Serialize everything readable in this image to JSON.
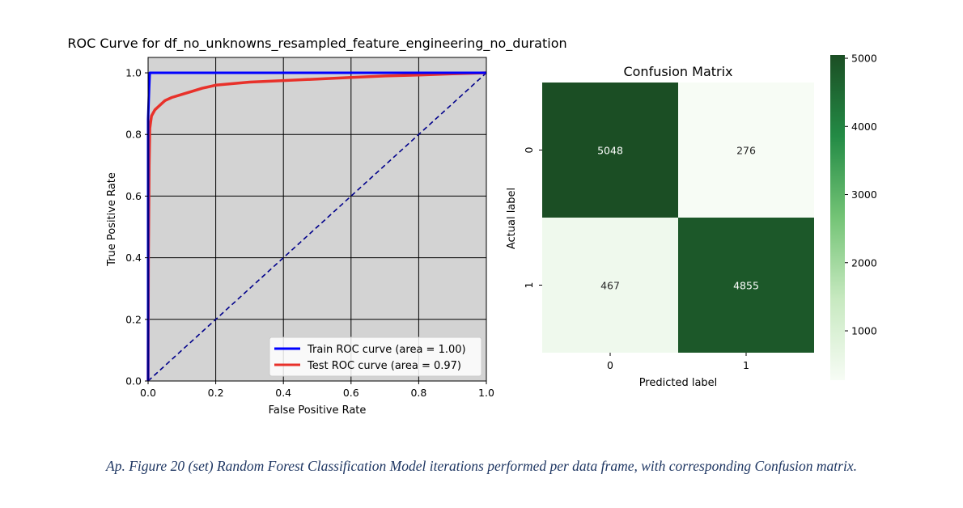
{
  "caption": "Ap. Figure 20 (set) Random Forest Classification Model iterations performed per data frame, with corresponding Confusion matrix.",
  "chart_data": [
    {
      "type": "line",
      "title": "ROC Curve for df_no_unknowns_resampled_feature_engineering_no_duration",
      "xlabel": "False Positive Rate",
      "ylabel": "True Positive Rate",
      "xlim": [
        0.0,
        1.0
      ],
      "ylim": [
        0.0,
        1.05
      ],
      "xticks": [
        0.0,
        0.2,
        0.4,
        0.6,
        0.8,
        1.0
      ],
      "yticks": [
        0.0,
        0.2,
        0.4,
        0.6,
        0.8,
        1.0
      ],
      "tick_labels_x": [
        "0.0",
        "0.2",
        "0.4",
        "0.6",
        "0.8",
        "1.0"
      ],
      "tick_labels_y": [
        "0.0",
        "0.2",
        "0.4",
        "0.6",
        "0.8",
        "1.0"
      ],
      "grid": true,
      "background": "#d3d3d3",
      "legend_position": "lower-right",
      "series": [
        {
          "name": "Train ROC curve (area = 1.00)",
          "color": "#0000ff",
          "x": [
            0.0,
            0.0,
            0.003,
            0.005,
            1.0
          ],
          "y": [
            0.0,
            0.85,
            0.95,
            1.0,
            1.0
          ]
        },
        {
          "name": "Test ROC curve (area = 0.97)",
          "color": "#e8312a",
          "x": [
            0.0,
            0.001,
            0.003,
            0.005,
            0.01,
            0.02,
            0.03,
            0.05,
            0.07,
            0.1,
            0.13,
            0.16,
            0.2,
            0.25,
            0.3,
            0.4,
            0.5,
            0.6,
            0.7,
            0.8,
            0.9,
            1.0
          ],
          "y": [
            0.0,
            0.4,
            0.7,
            0.82,
            0.86,
            0.88,
            0.89,
            0.91,
            0.92,
            0.93,
            0.94,
            0.95,
            0.96,
            0.965,
            0.97,
            0.975,
            0.98,
            0.985,
            0.99,
            0.993,
            0.997,
            1.0
          ]
        }
      ],
      "reference_line": {
        "x": [
          0.0,
          1.0
        ],
        "y": [
          0.0,
          1.0
        ],
        "color": "#00008b",
        "style": "dashed"
      }
    },
    {
      "type": "heatmap",
      "title": "Confusion Matrix",
      "xlabel": "Predicted label",
      "ylabel": "Actual label",
      "x_categories": [
        "0",
        "1"
      ],
      "y_categories": [
        "0",
        "1"
      ],
      "values": [
        [
          5048,
          276
        ],
        [
          467,
          4855
        ]
      ],
      "value_labels": [
        [
          "5048",
          "276"
        ],
        [
          "467",
          "4855"
        ]
      ],
      "colormap": "Greens",
      "color_range": [
        276,
        5048
      ],
      "colorbar_ticks": [
        1000,
        2000,
        3000,
        4000,
        5000
      ],
      "colorbar_tick_labels": [
        "1000",
        "2000",
        "3000",
        "4000",
        "5000"
      ]
    }
  ]
}
